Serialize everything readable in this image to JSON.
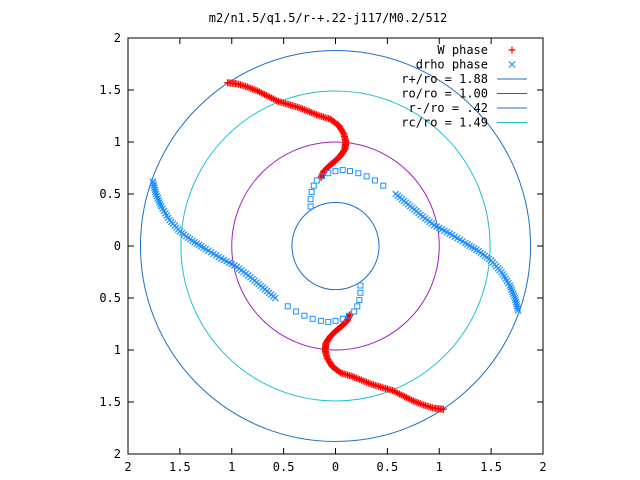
{
  "chart_data": {
    "type": "scatter",
    "title": "m2/n1.5/q1.5/r-+.22-j117/M0.2/512",
    "xlabel": "",
    "ylabel": "",
    "xlim": [
      -2,
      2
    ],
    "ylim": [
      -2,
      2
    ],
    "grid": false,
    "legend_position": "top-right",
    "x_ticks": [
      {
        "value": -2,
        "label": "2"
      },
      {
        "value": -1.5,
        "label": "1.5"
      },
      {
        "value": -1,
        "label": "1"
      },
      {
        "value": -0.5,
        "label": "0.5"
      },
      {
        "value": 0,
        "label": "0"
      },
      {
        "value": 0.5,
        "label": "0.5"
      },
      {
        "value": 1,
        "label": "1"
      },
      {
        "value": 1.5,
        "label": "1.5"
      },
      {
        "value": 2,
        "label": "2"
      }
    ],
    "y_ticks": [
      {
        "value": 2,
        "label": "2"
      },
      {
        "value": 1.5,
        "label": "1.5"
      },
      {
        "value": 1,
        "label": "1"
      },
      {
        "value": 0.5,
        "label": "0.5"
      },
      {
        "value": 0,
        "label": "0"
      },
      {
        "value": -0.5,
        "label": "0.5"
      },
      {
        "value": -1,
        "label": "1"
      },
      {
        "value": -1.5,
        "label": "1.5"
      },
      {
        "value": -2,
        "label": "2"
      }
    ],
    "series": [
      {
        "name": "W phase",
        "kind": "points",
        "marker": "plus",
        "color": "#ff0000",
        "points": [
          [
            -1.04,
            1.57
          ],
          [
            -0.95,
            1.56
          ],
          [
            -0.85,
            1.53
          ],
          [
            -0.75,
            1.49
          ],
          [
            -0.65,
            1.44
          ],
          [
            -0.55,
            1.39
          ],
          [
            -0.45,
            1.36
          ],
          [
            -0.35,
            1.33
          ],
          [
            -0.25,
            1.29
          ],
          [
            -0.15,
            1.25
          ],
          [
            -0.05,
            1.22
          ],
          [
            0.03,
            1.16
          ],
          [
            0.08,
            1.08
          ],
          [
            0.1,
            1.0
          ],
          [
            0.09,
            0.93
          ],
          [
            0.05,
            0.87
          ],
          [
            0.0,
            0.82
          ],
          [
            -0.06,
            0.77
          ],
          [
            -0.11,
            0.72
          ],
          [
            -0.14,
            0.66
          ],
          [
            1.04,
            -1.57
          ],
          [
            0.95,
            -1.56
          ],
          [
            0.85,
            -1.53
          ],
          [
            0.75,
            -1.49
          ],
          [
            0.65,
            -1.44
          ],
          [
            0.55,
            -1.39
          ],
          [
            0.45,
            -1.36
          ],
          [
            0.35,
            -1.33
          ],
          [
            0.25,
            -1.29
          ],
          [
            0.15,
            -1.25
          ],
          [
            0.05,
            -1.22
          ],
          [
            -0.03,
            -1.16
          ],
          [
            -0.08,
            -1.08
          ],
          [
            -0.1,
            -1.0
          ],
          [
            -0.09,
            -0.93
          ],
          [
            -0.05,
            -0.87
          ],
          [
            0.0,
            -0.82
          ],
          [
            0.06,
            -0.77
          ],
          [
            0.11,
            -0.72
          ],
          [
            0.14,
            -0.66
          ]
        ]
      },
      {
        "name": "drho phase",
        "kind": "points",
        "marker": "cross",
        "color": "#1e90ff",
        "points": [
          [
            1.76,
            -0.62
          ],
          [
            1.73,
            -0.5
          ],
          [
            1.68,
            -0.38
          ],
          [
            1.6,
            -0.25
          ],
          [
            1.5,
            -0.14
          ],
          [
            1.38,
            -0.05
          ],
          [
            1.25,
            0.03
          ],
          [
            1.1,
            0.12
          ],
          [
            0.95,
            0.2
          ],
          [
            0.82,
            0.3
          ],
          [
            0.7,
            0.4
          ],
          [
            0.58,
            0.5
          ],
          [
            -1.76,
            0.62
          ],
          [
            -1.73,
            0.5
          ],
          [
            -1.68,
            0.38
          ],
          [
            -1.6,
            0.25
          ],
          [
            -1.5,
            0.14
          ],
          [
            -1.38,
            0.05
          ],
          [
            -1.25,
            -0.03
          ],
          [
            -1.1,
            -0.12
          ],
          [
            -0.95,
            -0.2
          ],
          [
            -0.82,
            -0.3
          ],
          [
            -0.7,
            -0.4
          ],
          [
            -0.58,
            -0.5
          ]
        ]
      },
      {
        "name": "",
        "kind": "points",
        "marker": "square",
        "color": "#1e90ff",
        "points": [
          [
            -0.24,
            0.38
          ],
          [
            -0.24,
            0.45
          ],
          [
            -0.23,
            0.52
          ],
          [
            -0.21,
            0.58
          ],
          [
            -0.18,
            0.63
          ],
          [
            -0.13,
            0.67
          ],
          [
            -0.07,
            0.7
          ],
          [
            0.0,
            0.72
          ],
          [
            0.07,
            0.73
          ],
          [
            0.14,
            0.72
          ],
          [
            0.22,
            0.7
          ],
          [
            0.3,
            0.67
          ],
          [
            0.38,
            0.63
          ],
          [
            0.46,
            0.58
          ],
          [
            0.24,
            -0.38
          ],
          [
            0.24,
            -0.45
          ],
          [
            0.23,
            -0.52
          ],
          [
            0.21,
            -0.58
          ],
          [
            0.18,
            -0.63
          ],
          [
            0.13,
            -0.67
          ],
          [
            0.07,
            -0.7
          ],
          [
            0.0,
            -0.72
          ],
          [
            -0.07,
            -0.73
          ],
          [
            -0.14,
            -0.72
          ],
          [
            -0.22,
            -0.7
          ],
          [
            -0.3,
            -0.67
          ],
          [
            -0.38,
            -0.63
          ],
          [
            -0.46,
            -0.58
          ]
        ]
      },
      {
        "name": "r+/ro = 1.88",
        "kind": "circle",
        "radius": 1.88,
        "color": "#1f6fc4"
      },
      {
        "name": "ro/ro = 1.00",
        "kind": "circle",
        "radius": 1.0,
        "color": "#a020c0"
      },
      {
        "name": "r-/ro = .42",
        "kind": "circle",
        "radius": 0.42,
        "color": "#1f6fc4"
      },
      {
        "name": "rc/ro = 1.49",
        "kind": "circle",
        "radius": 1.49,
        "color": "#20c0d0"
      }
    ]
  }
}
